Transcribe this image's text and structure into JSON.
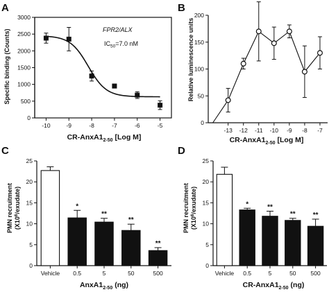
{
  "chart_data": [
    {
      "panel": "A",
      "type": "scatter",
      "annotations": [
        "FPR2/ALX",
        "IC50=7.0 nM"
      ],
      "xlabel": "CR-AnxA1 2-50 [Log M]",
      "ylabel": "Specific binding (Counts)",
      "xlim": [
        -10.5,
        -4.5
      ],
      "ylim": [
        0,
        3000
      ],
      "xticks": [
        -10,
        -9,
        -8,
        -7,
        -6,
        -5
      ],
      "yticks": [
        0,
        500,
        1000,
        1500,
        2000,
        2500,
        3000
      ],
      "points": [
        {
          "x": -10,
          "y": 2380,
          "err": 150
        },
        {
          "x": -9,
          "y": 2350,
          "err": 350
        },
        {
          "x": -8,
          "y": 1250,
          "err": 150
        },
        {
          "x": -7,
          "y": 950,
          "err": 60
        },
        {
          "x": -6,
          "y": 680,
          "err": 100
        },
        {
          "x": -5,
          "y": 380,
          "err": 130
        }
      ],
      "fit": {
        "top": 2450,
        "bottom": 630,
        "log_ic50": -8.15
      },
      "grid": false
    },
    {
      "panel": "B",
      "type": "line",
      "xlabel": "CR-AnxA1 2-50 [Log M]",
      "ylabel": "Relative luminescence units",
      "xlim": [
        -14.3,
        -6.5
      ],
      "ylim": [
        0,
        200
      ],
      "xticks": [
        -13,
        -12,
        -11,
        -10,
        -9,
        -8,
        -7
      ],
      "yticks": [
        0,
        50,
        100,
        150,
        200
      ],
      "points": [
        {
          "x": -13,
          "y": 42,
          "err": 22
        },
        {
          "x": -12,
          "y": 110,
          "err": 10
        },
        {
          "x": -11,
          "y": 170,
          "err": 55
        },
        {
          "x": -10,
          "y": 148,
          "err": 30
        },
        {
          "x": -9,
          "y": 170,
          "err": 12
        },
        {
          "x": -8,
          "y": 95,
          "err": 48
        },
        {
          "x": -7,
          "y": 130,
          "err": 30
        }
      ],
      "grid": false
    },
    {
      "panel": "C",
      "type": "bar",
      "xlabel": "AnxA1 2-50 (ng)",
      "ylabel": "PMN recruitment (X10^6/exudate)",
      "categories": [
        "Vehicle",
        "0.5",
        "5",
        "50",
        "500"
      ],
      "values": [
        22.7,
        11.4,
        10.4,
        8.4,
        3.6
      ],
      "errors": [
        0.9,
        1.8,
        0.9,
        1.5,
        0.7
      ],
      "significance": [
        "",
        "*",
        "**",
        "**",
        "**"
      ],
      "fills": [
        "white",
        "black",
        "black",
        "black",
        "black"
      ],
      "ylim": [
        0,
        25
      ],
      "yticks": [
        0,
        5,
        10,
        15,
        20,
        25
      ],
      "grid": false
    },
    {
      "panel": "D",
      "type": "bar",
      "xlabel": "CR-AnxA1 2-50 (ng)",
      "ylabel": "PMN recruitment (X10^6/exudate)",
      "categories": [
        "Vehicle",
        "0.5",
        "5",
        "50",
        "500"
      ],
      "values": [
        21.8,
        13.3,
        11.8,
        10.8,
        9.4
      ],
      "errors": [
        1.7,
        0.4,
        1.2,
        0.5,
        1.7
      ],
      "significance": [
        "",
        "*",
        "**",
        "**",
        "**"
      ],
      "fills": [
        "white",
        "black",
        "black",
        "black",
        "black"
      ],
      "ylim": [
        0,
        25
      ],
      "yticks": [
        0,
        5,
        10,
        15,
        20,
        25
      ],
      "grid": false
    }
  ],
  "text": {
    "panel_a": "A",
    "panel_b": "B",
    "panel_c": "C",
    "panel_d": "D",
    "anno_fpr": "FPR2/ALX",
    "anno_ic50_prefix": "IC",
    "anno_ic50_sub": "50",
    "anno_ic50_suffix": "=7.0 nM",
    "a_ylabel": "Specific binding (Counts)",
    "b_ylabel": "Relative luminescence units",
    "cd_ylabel_1": "PMN recruitment",
    "cd_ylabel_2a": "(X10",
    "cd_ylabel_2sup": "6",
    "cd_ylabel_2b": "/exudate)",
    "cr_prefix": "CR-AnxA1",
    "anx_prefix": "AnxA1",
    "sub_2_50": "2-50",
    "logm_suffix": "[Log M]",
    "ng_suffix": "(ng)"
  },
  "colors": {
    "ink": "#111111",
    "bar_white": "#ffffff",
    "bar_black": "#111111"
  }
}
